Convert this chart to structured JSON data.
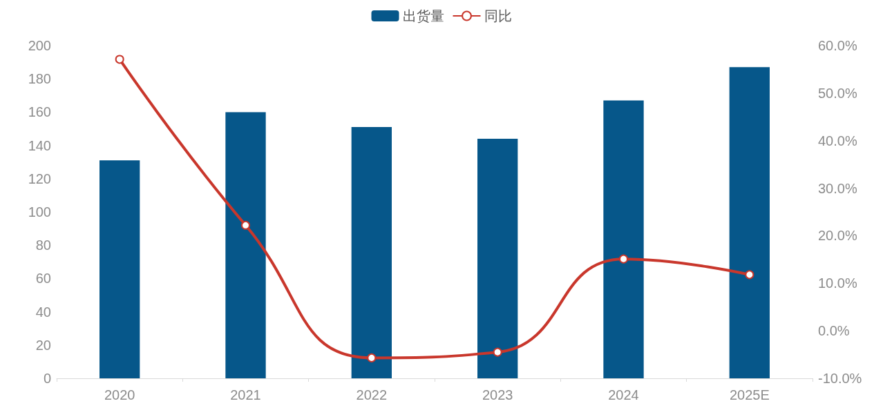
{
  "chart_data": {
    "type": "bar",
    "categories": [
      "2020",
      "2021",
      "2022",
      "2023",
      "2024",
      "2025E"
    ],
    "series": [
      {
        "name": "出货量",
        "color": "#06578a",
        "values": [
          131,
          160,
          151,
          144,
          167,
          187
        ]
      },
      {
        "name": "同比",
        "type": "line",
        "axis": "y2",
        "color": "#c9372c",
        "values": [
          57.1,
          22.2,
          -5.7,
          -4.5,
          15.1,
          11.8
        ]
      }
    ],
    "ylim": [
      0,
      200
    ],
    "yticks": [
      0,
      20,
      40,
      60,
      80,
      100,
      120,
      140,
      160,
      180,
      200
    ],
    "y2lim": [
      -10,
      60
    ],
    "y2ticks": [
      {
        "value": -10,
        "label": "-10.0%"
      },
      {
        "value": 0,
        "label": "0.0%"
      },
      {
        "value": 10,
        "label": "10.0%"
      },
      {
        "value": 20,
        "label": "20.0%"
      },
      {
        "value": 30,
        "label": "30.0%"
      },
      {
        "value": 40,
        "label": "40.0%"
      },
      {
        "value": 50,
        "label": "50.0%"
      },
      {
        "value": 60,
        "label": "60.0%"
      }
    ],
    "legend": "top",
    "grid": false,
    "marker": "circle"
  }
}
